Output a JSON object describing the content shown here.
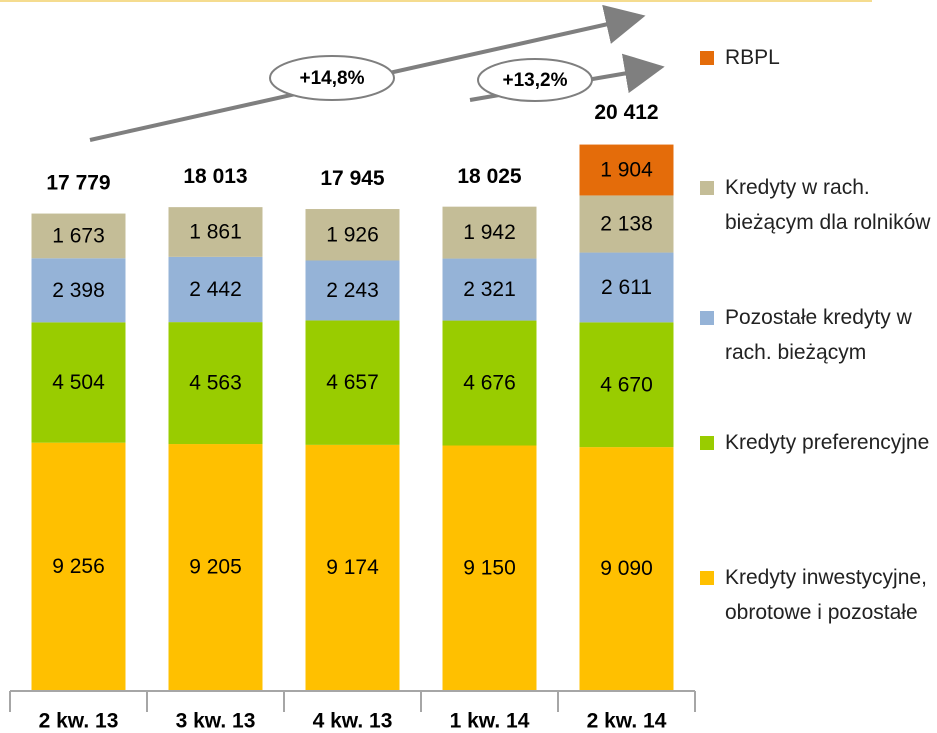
{
  "chart_data": {
    "type": "stacked_bar",
    "categories": [
      "2 kw. 13",
      "3 kw. 13",
      "4 kw. 13",
      "1 kw. 14",
      "2 kw. 14"
    ],
    "ylim": [
      0,
      25000
    ],
    "series": [
      {
        "name": "Kredyty inwestycyjne, obrotowe i pozostałe",
        "color": "#ffc000",
        "values": [
          9256,
          9205,
          9174,
          9150,
          9090
        ],
        "value_labels": [
          "9 256",
          "9 205",
          "9 174",
          "9 150",
          "9 090"
        ]
      },
      {
        "name": "Kredyty preferencyjne",
        "color": "#99cc00",
        "values": [
          4504,
          4563,
          4657,
          4676,
          4670
        ],
        "value_labels": [
          "4 504",
          "4 563",
          "4 657",
          "4 676",
          "4 670"
        ]
      },
      {
        "name": "Pozostałe kredyty w rach. bieżącym",
        "color": "#95b3d7",
        "values": [
          2398,
          2442,
          2243,
          2321,
          2611
        ],
        "value_labels": [
          "2 398",
          "2 442",
          "2 243",
          "2 321",
          "2 611"
        ]
      },
      {
        "name": "Kredyty w rach. bieżącym dla rolników",
        "color": "#c4bd97",
        "values": [
          1673,
          1861,
          1926,
          1942,
          2138
        ],
        "value_labels": [
          "1 673",
          "1 861",
          "1 926",
          "1 942",
          "2 138"
        ]
      },
      {
        "name": "RBPL",
        "color": "#e46c0a",
        "values": [
          null,
          null,
          null,
          null,
          1904
        ],
        "value_labels": [
          null,
          null,
          null,
          null,
          "1 904"
        ]
      }
    ],
    "totals": {
      "values": [
        17779,
        18013,
        17945,
        18025,
        20412
      ],
      "value_labels": [
        "17 779",
        "18 013",
        "17 945",
        "18 025",
        "20 412"
      ]
    },
    "annotations": [
      "+14,8%",
      "+13,2%"
    ]
  }
}
